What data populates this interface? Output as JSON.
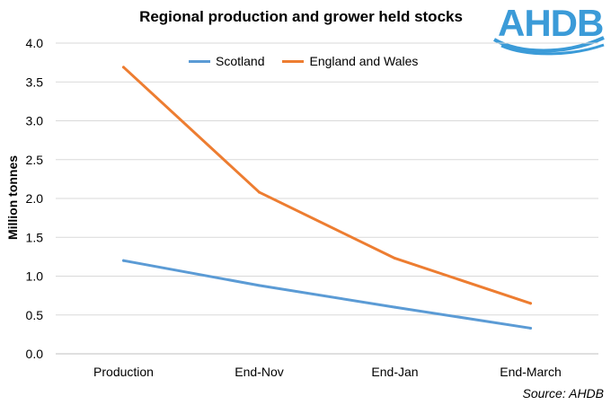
{
  "chart_data": {
    "type": "line",
    "title": "Regional production and grower held stocks",
    "ylabel": "Million tonnes",
    "xlabel": "",
    "categories": [
      "Production",
      "End-Nov",
      "End-Jan",
      "End-March"
    ],
    "ylim": [
      0,
      4.0
    ],
    "yticks": [
      "0.0",
      "0.5",
      "1.0",
      "1.5",
      "2.0",
      "2.5",
      "3.0",
      "3.5",
      "4.0"
    ],
    "grid": "horizontal",
    "legend_position": "top",
    "series": [
      {
        "name": "Scotland",
        "color": "#5b9bd5",
        "values": [
          1.2,
          0.88,
          0.6,
          0.33
        ]
      },
      {
        "name": "England and Wales",
        "color": "#ed7d31",
        "values": [
          3.69,
          2.08,
          1.23,
          0.65
        ]
      }
    ],
    "source": "Source: AHDB"
  },
  "logo": {
    "text": "AHDB",
    "color": "#3b9bd8"
  }
}
